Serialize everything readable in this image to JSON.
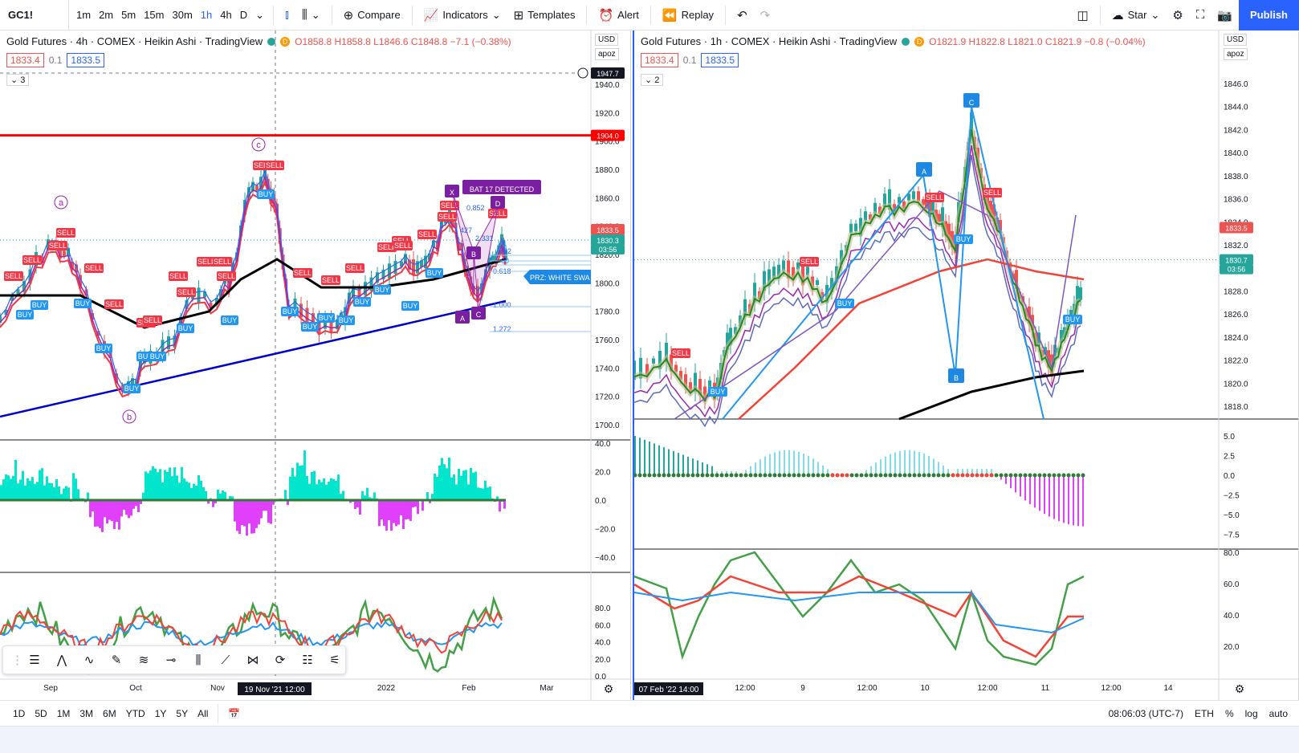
{
  "toolbar": {
    "symbol": "GC1!",
    "intervals": [
      "1m",
      "2m",
      "5m",
      "15m",
      "30m",
      "1h",
      "4h",
      "D"
    ],
    "active_interval": "1h",
    "compare": "Compare",
    "indicators": "Indicators",
    "templates": "Templates",
    "alert": "Alert",
    "replay": "Replay",
    "star": "Star",
    "publish": "Publish",
    "accent": "#2962ff"
  },
  "left_chart": {
    "title": "Gold Futures · 4h · COMEX · Heikin Ashi · TradingView",
    "ohlc": "O1858.8 H1858.8 L1846.6 C1848.8 −7.1 (−0.38%)",
    "bid": "1833.4",
    "spread": "0.1",
    "ask": "1833.5",
    "collapse": "3",
    "currency": "USD",
    "apoz": "apoz",
    "price_ticks": [
      "1940.0",
      "1920.0",
      "1900.0",
      "1880.0",
      "1860.0",
      "1840.0",
      "1820.0",
      "1800.0",
      "1780.0",
      "1760.0",
      "1740.0",
      "1720.0",
      "1700.0"
    ],
    "labels": {
      "top": "1947.7",
      "red": "1904.0",
      "last": "1833.5",
      "last2": "1830.3",
      "time": "03:56"
    },
    "pattern": "BAT 17 DETECTED",
    "prz": "PRZ: WHITE SWA",
    "fib": [
      "0.852",
      "427",
      "2.331",
      "882",
      "00",
      "0.618",
      "1.000",
      "1.272"
    ],
    "osc1_ticks": [
      "40.0",
      "20.0",
      "0.0",
      "−20.0",
      "−40.0"
    ],
    "osc2_ticks": [
      "80.0",
      "60.0",
      "40.0",
      "20.0",
      "0.0"
    ],
    "time_ticks": [
      "Sep",
      "Oct",
      "Nov",
      "2022",
      "Feb",
      "Mar"
    ],
    "time_cursor": "19 Nov '21   12:00"
  },
  "right_chart": {
    "title": "Gold Futures · 1h · COMEX · Heikin Ashi · TradingView",
    "ohlc": "O1821.9 H1822.8 L1821.0 C1821.9 −0.8 (−0.04%)",
    "bid": "1833.4",
    "spread": "0.1",
    "ask": "1833.5",
    "collapse": "2",
    "currency": "USD",
    "apoz": "apoz",
    "price_ticks": [
      "1846.0",
      "1844.0",
      "1842.0",
      "1840.0",
      "1838.0",
      "1836.0",
      "1834.0",
      "1832.0",
      "1830.0",
      "1828.0",
      "1826.0",
      "1824.0",
      "1822.0",
      "1820.0",
      "1818.0"
    ],
    "labels": {
      "last": "1833.5",
      "last2": "1830.7",
      "time": "03:56"
    },
    "osc1_ticks": [
      "5.0",
      "2.5",
      "0.0",
      "−2.5",
      "−5.0",
      "−7.5"
    ],
    "osc2_ticks": [
      "80.0",
      "60.0",
      "40.0",
      "20.0"
    ],
    "time_ticks": [
      "12:00",
      "9",
      "12:00",
      "10",
      "12:00",
      "11",
      "12:00",
      "14"
    ],
    "time_cursor": "07 Feb '22   14:00"
  },
  "bottom": {
    "ranges": [
      "1D",
      "5D",
      "1M",
      "3M",
      "6M",
      "YTD",
      "1Y",
      "5Y",
      "All"
    ],
    "clock": "08:06:03 (UTC-7)",
    "session": "ETH",
    "pct": "%",
    "log": "log",
    "auto": "auto"
  }
}
